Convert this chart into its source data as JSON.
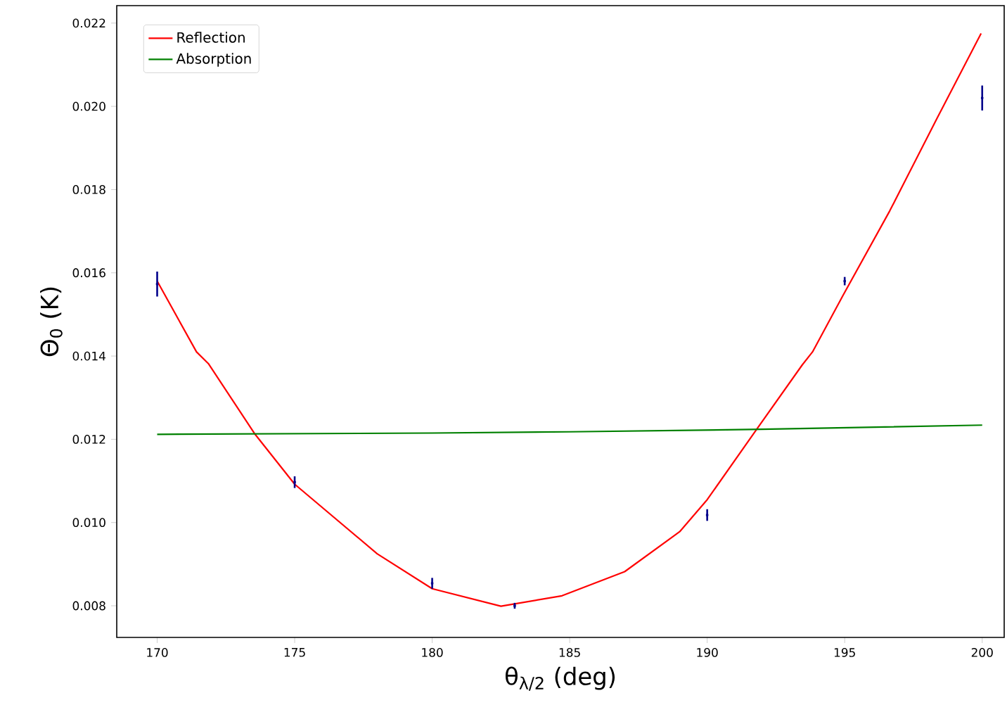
{
  "chart_data": {
    "type": "line",
    "xlabel": "θ$_{λ/2}$ (deg)",
    "ylabel": "Θ$_{0}$ (K)",
    "xlim": [
      168.53,
      200.8
    ],
    "ylim": [
      0.00724,
      0.02242
    ],
    "xticks": [
      170,
      175,
      180,
      185,
      190,
      195,
      200
    ],
    "yticks": [
      0.008,
      {
        "value": 0.01,
        "label": "0.010"
      },
      0.012,
      0.014,
      0.016,
      0.018,
      {
        "value": 0.02,
        "label": "0.020"
      },
      0.022
    ],
    "legend": "top left",
    "series": [
      {
        "name": "Reflection",
        "type": "line",
        "color": "#ff0000",
        "x": [
          170,
          171.43,
          171.86,
          173.56,
          175,
          178,
          180,
          182.5,
          184.72,
          187,
          189,
          190,
          191.8,
          193.46,
          193.83,
          194.94,
          196.64,
          198.34,
          199.96
        ],
        "values": [
          0.0158,
          0.0141,
          0.01382,
          0.01212,
          0.01092,
          0.00925,
          0.00841,
          0.00799,
          0.00824,
          0.00882,
          0.00978,
          0.01055,
          0.01224,
          0.01379,
          0.0141,
          0.01546,
          0.01749,
          0.01969,
          0.02175
        ]
      },
      {
        "name": "Absorption",
        "type": "line",
        "color": "#008000",
        "x": [
          170,
          180,
          185,
          192,
          200
        ],
        "values": [
          0.01212,
          0.01215,
          0.01218,
          0.01224,
          0.01234
        ]
      },
      {
        "type": "scatter",
        "marker": "square",
        "color": "#00008b",
        "x": [
          170,
          175,
          180,
          183,
          190,
          195,
          200
        ],
        "values": [
          0.01573,
          0.01097,
          0.00854,
          0.008,
          0.01018,
          0.0158,
          0.0202
        ],
        "errors": [
          0.0003,
          0.00014,
          0.00013,
          7e-05,
          0.00014,
          0.0001,
          0.0003
        ]
      }
    ]
  }
}
